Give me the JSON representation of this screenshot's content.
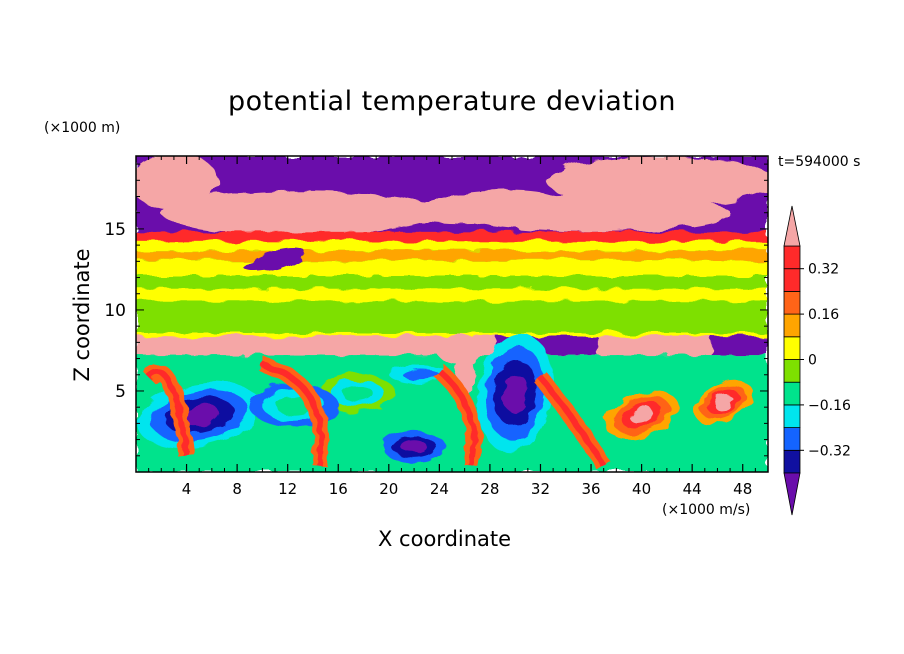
{
  "chart_data": {
    "type": "heatmap",
    "title": "potential temperature deviation",
    "xlabel": "X coordinate",
    "ylabel": "Z coordinate",
    "x_unit": "(×1000 m/s)",
    "y_unit": "(×1000 m)",
    "time_label": "t=594000 s",
    "x_ticks": [
      4,
      8,
      12,
      16,
      20,
      24,
      28,
      32,
      36,
      40,
      44,
      48
    ],
    "y_ticks": [
      5,
      10,
      15
    ],
    "xlim": [
      0,
      50
    ],
    "ylim": [
      0,
      19.5
    ],
    "colorbar": {
      "levels": [
        -0.4,
        -0.32,
        -0.24,
        -0.16,
        -0.08,
        0,
        0.08,
        0.16,
        0.24,
        0.32,
        0.4
      ],
      "tick_labels": [
        "0.32",
        "0.16",
        "0",
        "−0.16",
        "−0.32"
      ],
      "tick_values": [
        0.32,
        0.16,
        0,
        -0.16,
        -0.32
      ],
      "colors": [
        "#6a0dab",
        "#1010a0",
        "#1464ff",
        "#00e5ee",
        "#00e38c",
        "#7ee000",
        "#ffff00",
        "#ffa500",
        "#ff6418",
        "#ff2a2a",
        "#f5a6a6"
      ],
      "extend": "both"
    }
  }
}
